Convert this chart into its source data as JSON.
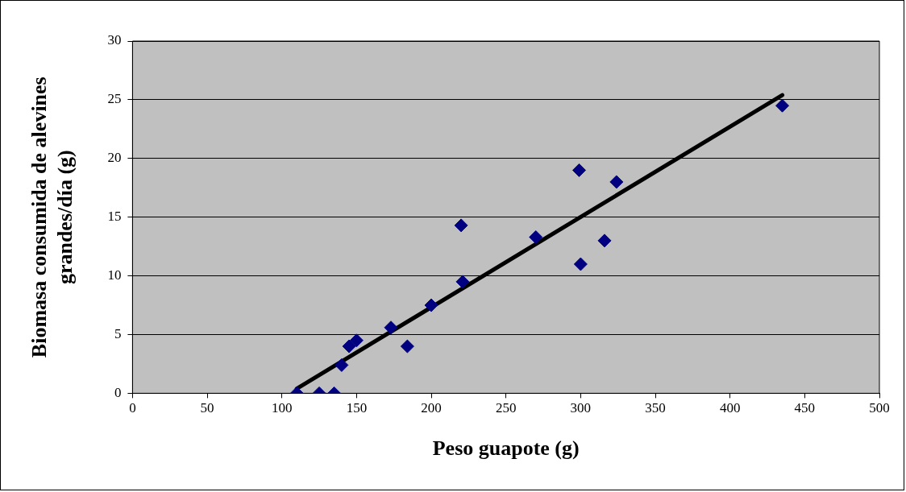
{
  "chart_data": {
    "type": "scatter",
    "xlabel": "Peso guapote (g)",
    "ylabel": "Biomasa consumida de alevines grandes/día (g)",
    "xlim": [
      0,
      500
    ],
    "xticks": [
      0,
      50,
      100,
      150,
      200,
      250,
      300,
      350,
      400,
      450,
      500
    ],
    "ylim": [
      0,
      30
    ],
    "yticks": [
      0,
      5,
      10,
      15,
      20,
      25,
      30
    ],
    "grid": "y",
    "legend": false,
    "series": [
      {
        "color": "#000080",
        "marker": "diamond",
        "x": [
          110,
          125,
          135,
          140,
          145,
          150,
          173,
          184,
          200,
          220,
          221,
          270,
          299,
          300,
          316,
          324,
          435
        ],
        "values": [
          0,
          0,
          0,
          2.4,
          4,
          4.5,
          5.6,
          4,
          7.5,
          14.3,
          9.5,
          13.3,
          19,
          11,
          13,
          18,
          24.5
        ]
      },
      {
        "type": "line",
        "color": "#000000",
        "marker": "none",
        "line_style": "solid",
        "x": [
          110,
          435
        ],
        "values": [
          0.4,
          25.4
        ]
      }
    ]
  }
}
